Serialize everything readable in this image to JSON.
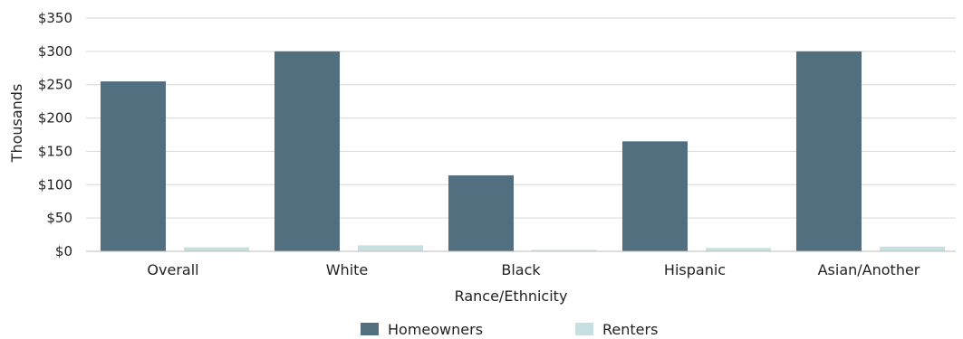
{
  "chart_data": {
    "type": "bar",
    "title": "",
    "xlabel": "Rance/Ethnicity",
    "ylabel": "Thousands",
    "ylim": [
      0,
      350
    ],
    "yticks": [
      0,
      50,
      100,
      150,
      200,
      250,
      300,
      350
    ],
    "ytick_labels": [
      "$0",
      "$50",
      "$100",
      "$150",
      "$200",
      "$250",
      "$300",
      "$350"
    ],
    "grid": true,
    "legend_position": "bottom",
    "categories": [
      "Overall",
      "White",
      "Black",
      "Hispanic",
      "Asian/Another"
    ],
    "series": [
      {
        "name": "Homeowners",
        "color": "#526f80",
        "values": [
          255,
          300,
          114,
          165,
          300
        ]
      },
      {
        "name": "Renters",
        "color": "#c7dfe1",
        "values": [
          6,
          9,
          2,
          5,
          7
        ]
      }
    ]
  }
}
